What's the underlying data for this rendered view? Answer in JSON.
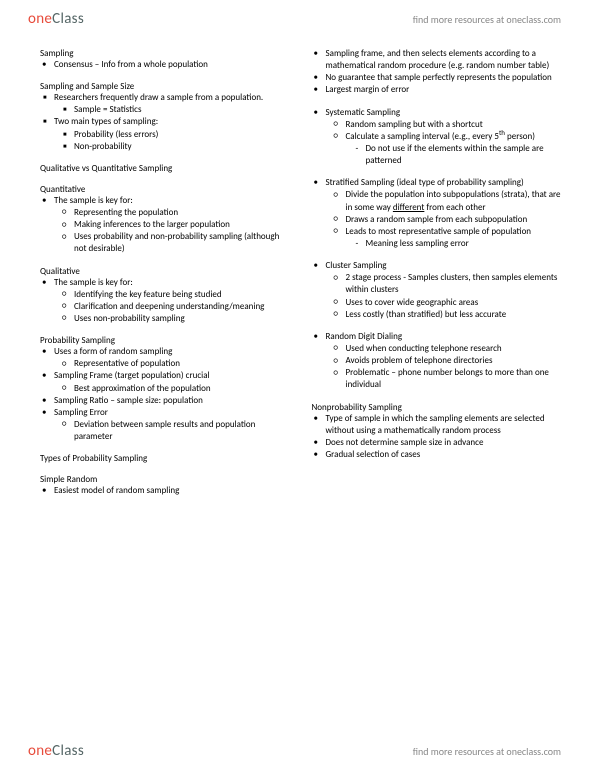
{
  "brand": {
    "one": "one",
    "class": "Class",
    "findMore": "find more resources at oneclass.com"
  },
  "left": {
    "h1": "Sampling",
    "b1": "Consensus – Info from a whole population",
    "h2": "Sampling and Sample Size",
    "b2a": "Researchers frequently draw a sample from a population.",
    "b2a1": "Sample = Statistics",
    "b2b": "Two main types of sampling:",
    "b2b1": "Probability (less errors)",
    "b2b2": "Non-probability",
    "h3": "Qualitative vs Quantitative Sampling",
    "h4": "Quantitative",
    "b4": "The sample is key for:",
    "b4a": "Representing the population",
    "b4b": "Making inferences to the larger population",
    "b4c": "Uses probability and non-probability sampling (although not desirable)",
    "h5": "Qualitative",
    "b5": "The sample is key for:",
    "b5a": "Identifying the key feature being studied",
    "b5b": "Clarification and deepening understanding/meaning",
    "b5c": "Uses non-probability sampling",
    "h6": "Probability Sampling",
    "b6a": "Uses a form of random sampling",
    "b6a1": "Representative of population",
    "b6b": "Sampling Frame (target population) crucial",
    "b6b1": "Best approximation of the population",
    "b6c": "Sampling Ratio – sample size: population",
    "b6d": "Sampling Error",
    "b6d1": "Deviation between sample results and population parameter",
    "h7": "Types of Probability Sampling",
    "h8": "Simple Random",
    "b8": "Easiest model of random sampling"
  },
  "right": {
    "b0a": "Sampling frame, and then selects elements according to a mathematical random procedure (e.g. random number table)",
    "b0b": "No guarantee that sample perfectly represents the population",
    "b0c": "Largest margin of error",
    "h1": "Systematic Sampling",
    "b1a": "Random sampling but with a shortcut",
    "b1b_pre": "Calculate a sampling interval (e.g., every 5",
    "b1b_sup": "th",
    "b1b_post": " person)",
    "b1b1": "Do not use if the elements within the sample are patterned",
    "h2": "Stratified Sampling (ideal type of probability sampling)",
    "b2a_pre": "Divide the population into subpopulations (strata), that are in some way ",
    "b2a_u": "different",
    "b2a_post": " from each other",
    "b2b": "Draws a random sample from each subpopulation",
    "b2c": "Leads to most representative sample of population",
    "b2c1": "Meaning less sampling error",
    "h3": "Cluster Sampling",
    "b3a": "2 stage process - Samples clusters, then samples elements within clusters",
    "b3b": "Uses to cover wide geographic areas",
    "b3c": "Less costly (than stratified) but less accurate",
    "h4": "Random Digit Dialing",
    "b4a": "Used when conducting telephone research",
    "b4b": "Avoids problem of telephone directories",
    "b4c": "Problematic – phone number belongs to more than one individual",
    "h5": "Nonprobability Sampling",
    "b5a": "Type of sample in which the sampling elements are selected without using a mathematically random process",
    "b5b": "Does not determine sample size in advance",
    "b5c": "Gradual selection of cases"
  }
}
